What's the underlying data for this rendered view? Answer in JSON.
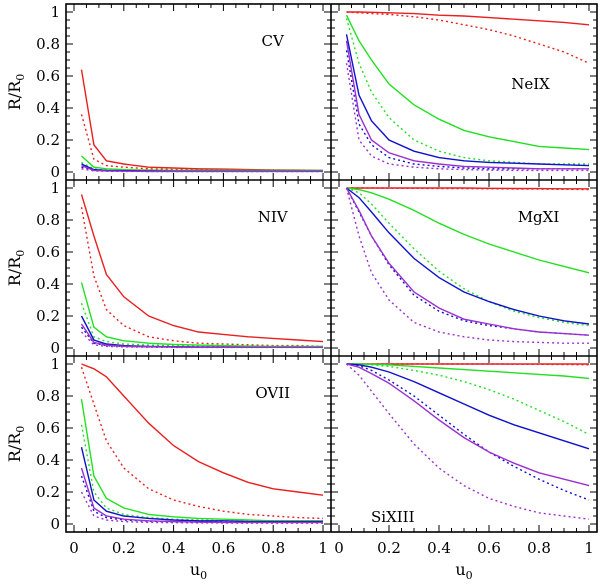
{
  "chart_data": {
    "type": "line",
    "xlabel": "u",
    "xlabel_sub": "0",
    "ylabel": "R/R",
    "ylabel_sub": "0",
    "xlim": [
      0,
      1
    ],
    "ylim": [
      0,
      1
    ],
    "x_ticks": [
      0,
      0.2,
      0.4,
      0.6,
      0.8,
      1
    ],
    "x_tick_labels": [
      "0",
      "0.2",
      "0.4",
      "0.6",
      "0.8",
      "1"
    ],
    "y_ticks": [
      0,
      0.2,
      0.4,
      0.6,
      0.8,
      1
    ],
    "y_tick_labels": [
      "0",
      "0.2",
      "0.4",
      "0.6",
      "0.8",
      "1"
    ],
    "x": [
      0.03,
      0.08,
      0.13,
      0.2,
      0.3,
      0.4,
      0.5,
      0.6,
      0.7,
      0.8,
      0.9,
      1.0
    ],
    "colors": {
      "red": "#e8201f",
      "green": "#22e022",
      "blue": "#1010cc",
      "purple": "#9b30d0"
    },
    "panels": [
      {
        "name": "CV",
        "label_position": "top-right",
        "series": [
          {
            "color": "red",
            "style": "solid",
            "values": [
              0.64,
              0.17,
              0.07,
              0.05,
              0.03,
              0.025,
              0.02,
              0.018,
              0.015,
              0.013,
              0.012,
              0.01
            ]
          },
          {
            "color": "red",
            "style": "dotted",
            "values": [
              0.36,
              0.08,
              0.04,
              0.03,
              0.02,
              0.015,
              0.013,
              0.011,
              0.01,
              0.01,
              0.01,
              0.01
            ]
          },
          {
            "color": "green",
            "style": "solid",
            "values": [
              0.1,
              0.03,
              0.02,
              0.015,
              0.012,
              0.01,
              0.01,
              0.01,
              0.01,
              0.01,
              0.01,
              0.01
            ]
          },
          {
            "color": "green",
            "style": "dotted",
            "values": [
              0.06,
              0.02,
              0.01,
              0.01,
              0.01,
              0.01,
              0.01,
              0.01,
              0.01,
              0.01,
              0.01,
              0.01
            ]
          },
          {
            "color": "blue",
            "style": "solid",
            "values": [
              0.05,
              0.015,
              0.01,
              0.008,
              0.006,
              0.005,
              0.005,
              0.005,
              0.005,
              0.005,
              0.005,
              0.005
            ]
          },
          {
            "color": "blue",
            "style": "dotted",
            "values": [
              0.03,
              0.01,
              0.007,
              0.005,
              0.005,
              0.005,
              0.005,
              0.005,
              0.005,
              0.005,
              0.005,
              0.005
            ]
          },
          {
            "color": "purple",
            "style": "solid",
            "values": [
              0.04,
              0.01,
              0.007,
              0.005,
              0.004,
              0.004,
              0.004,
              0.004,
              0.004,
              0.004,
              0.004,
              0.004
            ]
          },
          {
            "color": "purple",
            "style": "dotted",
            "values": [
              0.02,
              0.007,
              0.005,
              0.004,
              0.003,
              0.003,
              0.003,
              0.003,
              0.003,
              0.003,
              0.003,
              0.003
            ]
          }
        ]
      },
      {
        "name": "NeIX",
        "label_position": "upper-right",
        "series": [
          {
            "color": "red",
            "style": "solid",
            "values": [
              1.0,
              1.0,
              0.998,
              0.995,
              0.99,
              0.98,
              0.975,
              0.965,
              0.955,
              0.945,
              0.935,
              0.92
            ]
          },
          {
            "color": "red",
            "style": "dotted",
            "values": [
              1.0,
              0.995,
              0.99,
              0.985,
              0.97,
              0.95,
              0.92,
              0.89,
              0.85,
              0.8,
              0.75,
              0.68
            ]
          },
          {
            "color": "green",
            "style": "solid",
            "values": [
              0.98,
              0.82,
              0.7,
              0.55,
              0.42,
              0.33,
              0.26,
              0.22,
              0.19,
              0.16,
              0.15,
              0.14
            ]
          },
          {
            "color": "green",
            "style": "dotted",
            "values": [
              0.96,
              0.68,
              0.5,
              0.34,
              0.2,
              0.13,
              0.09,
              0.07,
              0.06,
              0.05,
              0.05,
              0.05
            ]
          },
          {
            "color": "blue",
            "style": "solid",
            "values": [
              0.86,
              0.48,
              0.32,
              0.2,
              0.13,
              0.09,
              0.07,
              0.06,
              0.055,
              0.05,
              0.045,
              0.04
            ]
          },
          {
            "color": "blue",
            "style": "dotted",
            "values": [
              0.76,
              0.3,
              0.17,
              0.09,
              0.05,
              0.035,
              0.025,
              0.02,
              0.02,
              0.02,
              0.02,
              0.02
            ]
          },
          {
            "color": "purple",
            "style": "solid",
            "values": [
              0.82,
              0.36,
              0.2,
              0.12,
              0.07,
              0.05,
              0.035,
              0.03,
              0.025,
              0.02,
              0.02,
              0.02
            ]
          },
          {
            "color": "purple",
            "style": "dotted",
            "values": [
              0.68,
              0.2,
              0.1,
              0.05,
              0.03,
              0.02,
              0.015,
              0.012,
              0.01,
              0.01,
              0.01,
              0.01
            ]
          }
        ]
      },
      {
        "name": "NIV",
        "label_position": "top-right",
        "series": [
          {
            "color": "red",
            "style": "solid",
            "values": [
              0.96,
              0.7,
              0.46,
              0.32,
              0.2,
              0.14,
              0.1,
              0.085,
              0.07,
              0.06,
              0.05,
              0.04
            ]
          },
          {
            "color": "red",
            "style": "dotted",
            "values": [
              0.88,
              0.45,
              0.24,
              0.14,
              0.07,
              0.045,
              0.03,
              0.025,
              0.02,
              0.015,
              0.015,
              0.01
            ]
          },
          {
            "color": "green",
            "style": "solid",
            "values": [
              0.41,
              0.13,
              0.07,
              0.045,
              0.03,
              0.022,
              0.018,
              0.015,
              0.012,
              0.01,
              0.01,
              0.01
            ]
          },
          {
            "color": "green",
            "style": "dotted",
            "values": [
              0.28,
              0.07,
              0.04,
              0.025,
              0.018,
              0.014,
              0.012,
              0.01,
              0.01,
              0.01,
              0.01,
              0.01
            ]
          },
          {
            "color": "blue",
            "style": "solid",
            "values": [
              0.2,
              0.05,
              0.025,
              0.015,
              0.01,
              0.008,
              0.007,
              0.006,
              0.005,
              0.005,
              0.005,
              0.005
            ]
          },
          {
            "color": "blue",
            "style": "dotted",
            "values": [
              0.13,
              0.03,
              0.015,
              0.01,
              0.007,
              0.006,
              0.005,
              0.005,
              0.005,
              0.005,
              0.005,
              0.005
            ]
          },
          {
            "color": "purple",
            "style": "solid",
            "values": [
              0.15,
              0.035,
              0.018,
              0.011,
              0.008,
              0.006,
              0.005,
              0.005,
              0.005,
              0.005,
              0.005,
              0.005
            ]
          },
          {
            "color": "purple",
            "style": "dotted",
            "values": [
              0.1,
              0.02,
              0.01,
              0.007,
              0.005,
              0.004,
              0.004,
              0.004,
              0.004,
              0.004,
              0.004,
              0.004
            ]
          }
        ]
      },
      {
        "name": "MgXI",
        "label_position": "top-right",
        "series": [
          {
            "color": "red",
            "style": "solid",
            "values": [
              1.0,
              1.0,
              1.0,
              1.0,
              1.0,
              1.0,
              1.0,
              0.998,
              0.997,
              0.996,
              0.995,
              0.995
            ]
          },
          {
            "color": "red",
            "style": "dotted",
            "values": [
              1.0,
              1.0,
              1.0,
              0.999,
              0.998,
              0.997,
              0.996,
              0.995,
              0.994,
              0.993,
              0.992,
              0.99
            ]
          },
          {
            "color": "green",
            "style": "solid",
            "values": [
              1.0,
              0.99,
              0.97,
              0.93,
              0.86,
              0.78,
              0.71,
              0.65,
              0.6,
              0.55,
              0.51,
              0.47
            ]
          },
          {
            "color": "green",
            "style": "dotted",
            "values": [
              1.0,
              0.97,
              0.9,
              0.78,
              0.62,
              0.48,
              0.37,
              0.29,
              0.23,
              0.19,
              0.16,
              0.14
            ]
          },
          {
            "color": "blue",
            "style": "solid",
            "values": [
              1.0,
              0.94,
              0.85,
              0.72,
              0.56,
              0.44,
              0.35,
              0.29,
              0.24,
              0.2,
              0.17,
              0.15
            ]
          },
          {
            "color": "blue",
            "style": "dotted",
            "values": [
              1.0,
              0.85,
              0.7,
              0.52,
              0.33,
              0.23,
              0.17,
              0.14,
              0.12,
              0.1,
              0.09,
              0.08
            ]
          },
          {
            "color": "purple",
            "style": "solid",
            "values": [
              1.0,
              0.86,
              0.7,
              0.53,
              0.35,
              0.25,
              0.18,
              0.15,
              0.12,
              0.1,
              0.09,
              0.08
            ]
          },
          {
            "color": "purple",
            "style": "dotted",
            "values": [
              1.0,
              0.7,
              0.47,
              0.3,
              0.16,
              0.1,
              0.07,
              0.05,
              0.04,
              0.035,
              0.03,
              0.03
            ]
          }
        ]
      },
      {
        "name": "OVII",
        "label_position": "top-right",
        "series": [
          {
            "color": "red",
            "style": "solid",
            "values": [
              1.0,
              0.97,
              0.92,
              0.8,
              0.63,
              0.49,
              0.39,
              0.32,
              0.26,
              0.22,
              0.2,
              0.18
            ]
          },
          {
            "color": "red",
            "style": "dotted",
            "values": [
              0.98,
              0.75,
              0.52,
              0.35,
              0.22,
              0.15,
              0.11,
              0.08,
              0.06,
              0.05,
              0.04,
              0.035
            ]
          },
          {
            "color": "green",
            "style": "solid",
            "values": [
              0.78,
              0.3,
              0.16,
              0.1,
              0.06,
              0.045,
              0.035,
              0.03,
              0.025,
              0.02,
              0.02,
              0.02
            ]
          },
          {
            "color": "green",
            "style": "dotted",
            "values": [
              0.62,
              0.2,
              0.1,
              0.06,
              0.04,
              0.03,
              0.025,
              0.02,
              0.02,
              0.02,
              0.02,
              0.02
            ]
          },
          {
            "color": "blue",
            "style": "solid",
            "values": [
              0.48,
              0.15,
              0.08,
              0.05,
              0.035,
              0.025,
              0.02,
              0.02,
              0.015,
              0.015,
              0.015,
              0.015
            ]
          },
          {
            "color": "blue",
            "style": "dotted",
            "values": [
              0.3,
              0.08,
              0.04,
              0.025,
              0.018,
              0.014,
              0.012,
              0.01,
              0.01,
              0.01,
              0.01,
              0.01
            ]
          },
          {
            "color": "purple",
            "style": "solid",
            "values": [
              0.35,
              0.1,
              0.05,
              0.03,
              0.02,
              0.015,
              0.012,
              0.01,
              0.01,
              0.01,
              0.01,
              0.01
            ]
          },
          {
            "color": "purple",
            "style": "dotted",
            "values": [
              0.2,
              0.05,
              0.025,
              0.015,
              0.01,
              0.008,
              0.007,
              0.006,
              0.005,
              0.005,
              0.005,
              0.005
            ]
          }
        ]
      },
      {
        "name": "SiXIII",
        "label_position": "bottom-left",
        "series": [
          {
            "color": "red",
            "style": "solid",
            "values": [
              1.0,
              1.0,
              1.0,
              1.0,
              1.0,
              1.0,
              1.0,
              1.0,
              1.0,
              1.0,
              1.0,
              1.0
            ]
          },
          {
            "color": "red",
            "style": "dotted",
            "values": [
              1.0,
              1.0,
              1.0,
              1.0,
              1.0,
              1.0,
              1.0,
              1.0,
              0.999,
              0.998,
              0.997,
              0.995
            ]
          },
          {
            "color": "green",
            "style": "solid",
            "values": [
              1.0,
              1.0,
              0.998,
              0.995,
              0.985,
              0.975,
              0.965,
              0.955,
              0.945,
              0.935,
              0.925,
              0.91
            ]
          },
          {
            "color": "green",
            "style": "dotted",
            "values": [
              1.0,
              1.0,
              0.995,
              0.985,
              0.96,
              0.93,
              0.89,
              0.84,
              0.78,
              0.71,
              0.64,
              0.56
            ]
          },
          {
            "color": "blue",
            "style": "solid",
            "values": [
              1.0,
              0.995,
              0.98,
              0.95,
              0.89,
              0.82,
              0.75,
              0.68,
              0.62,
              0.57,
              0.52,
              0.47
            ]
          },
          {
            "color": "blue",
            "style": "dotted",
            "values": [
              1.0,
              0.99,
              0.96,
              0.9,
              0.8,
              0.68,
              0.56,
              0.45,
              0.36,
              0.28,
              0.21,
              0.15
            ]
          },
          {
            "color": "purple",
            "style": "solid",
            "values": [
              1.0,
              0.98,
              0.94,
              0.88,
              0.77,
              0.65,
              0.54,
              0.45,
              0.38,
              0.32,
              0.28,
              0.24
            ]
          },
          {
            "color": "purple",
            "style": "dotted",
            "values": [
              1.0,
              0.93,
              0.83,
              0.69,
              0.5,
              0.35,
              0.24,
              0.16,
              0.11,
              0.07,
              0.05,
              0.03
            ]
          }
        ]
      }
    ]
  }
}
